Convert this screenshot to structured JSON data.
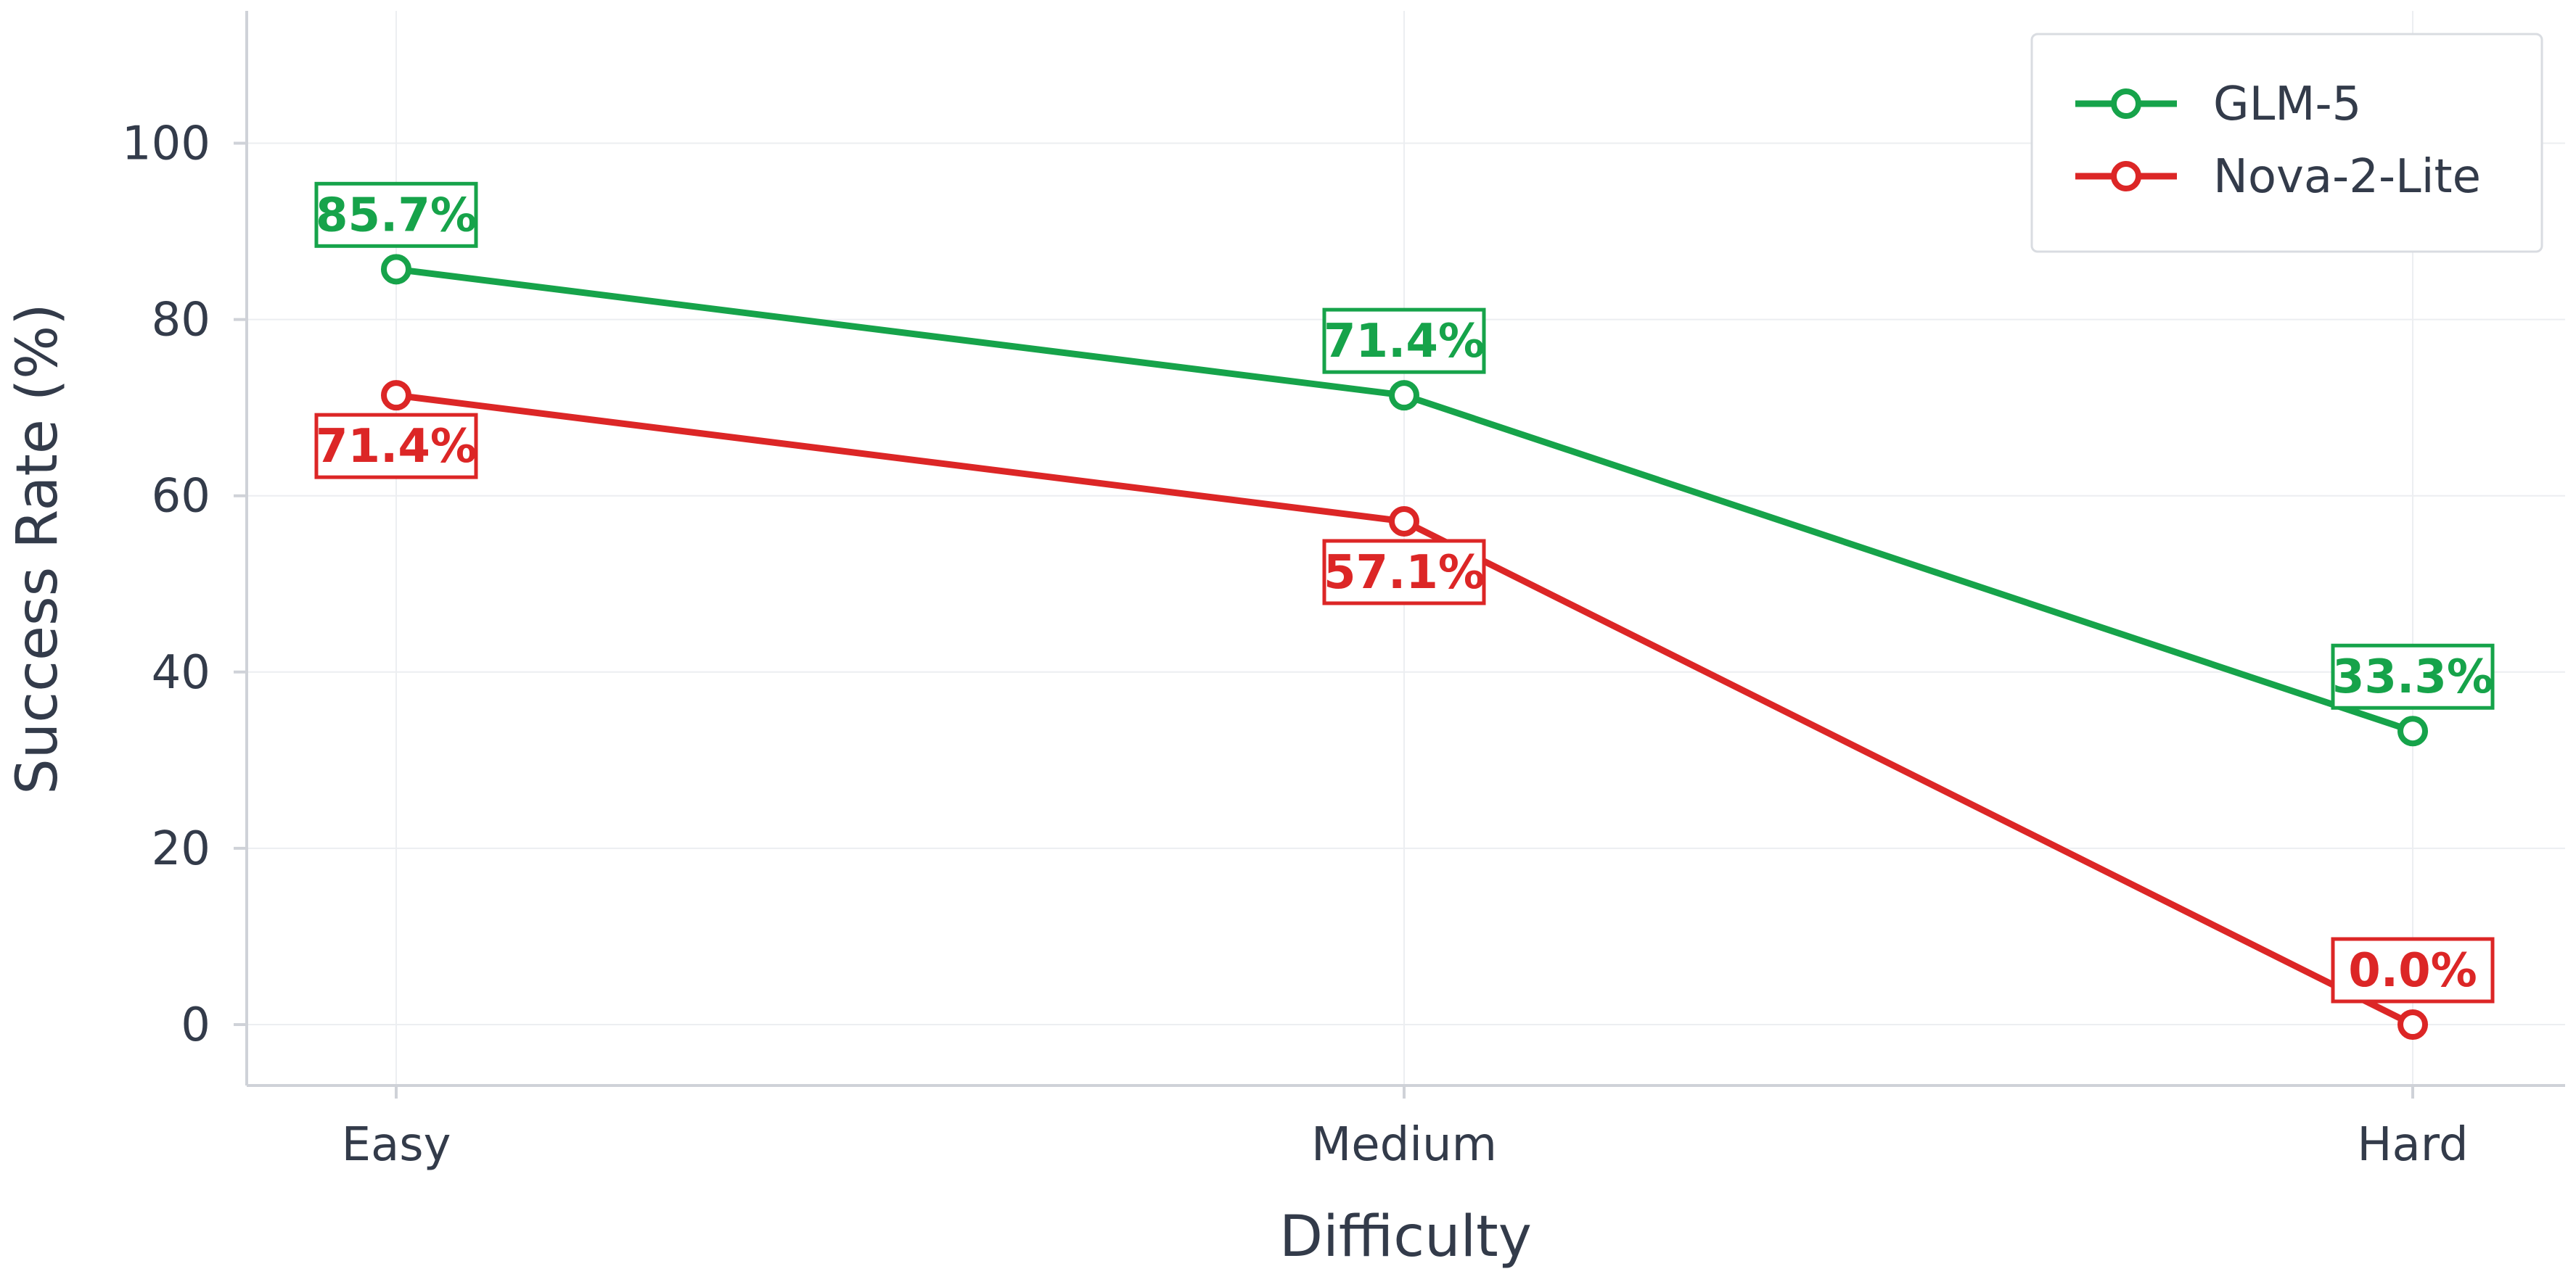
{
  "chart_data": {
    "type": "line",
    "title": "",
    "xlabel": "Difficulty",
    "ylabel": "Success Rate (%)",
    "categories": [
      "Easy",
      "Medium",
      "Hard"
    ],
    "ylim": [
      -7,
      115
    ],
    "yticks": [
      0,
      20,
      40,
      60,
      80,
      100
    ],
    "grid": true,
    "legend_position": "top-right",
    "series": [
      {
        "name": "GLM-5",
        "color": "#16a34a",
        "values": [
          85.7,
          71.4,
          33.3
        ],
        "labels": [
          "85.7%",
          "71.4%",
          "33.3%"
        ],
        "label_placement": [
          "above",
          "above",
          "above"
        ]
      },
      {
        "name": "Nova-2-Lite",
        "color": "#dc2626",
        "values": [
          71.4,
          57.1,
          0.0
        ],
        "labels": [
          "71.4%",
          "57.1%",
          "0.0%"
        ],
        "label_placement": [
          "below",
          "below",
          "above"
        ]
      }
    ]
  }
}
